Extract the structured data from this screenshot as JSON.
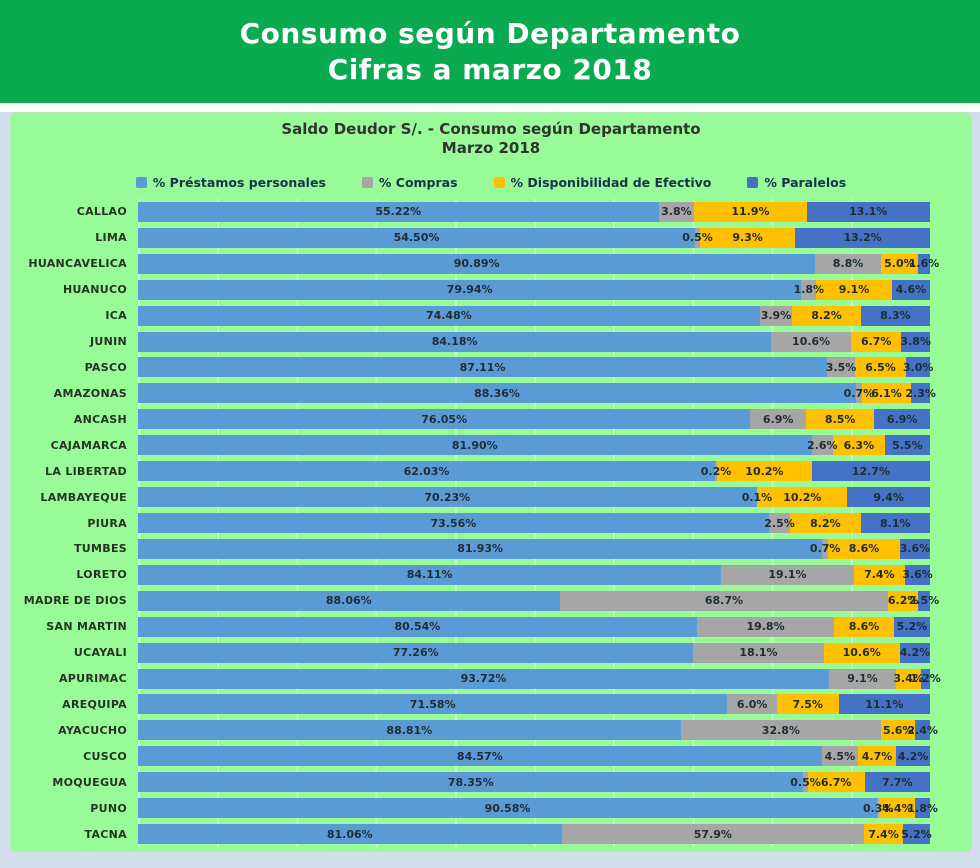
{
  "banner": {
    "title_line1": "Consumo según Departamento",
    "title_line2": "Cifras a marzo 2018",
    "background": "#0aab50",
    "text_color": "#ffffff"
  },
  "chart": {
    "title_line1": "Saldo Deudor S/. - Consumo según Departamento",
    "title_line2": "Marzo 2018",
    "panel_background": "#98fb98"
  },
  "chart_data": {
    "type": "bar",
    "orientation": "horizontal",
    "stacked": true,
    "normalized": "each row scaled to its own total",
    "legend_position": "top",
    "grid": "faint vertical gridlines",
    "title": "Saldo Deudor S/. - Consumo según Departamento Marzo 2018",
    "categories": [
      "CALLAO",
      "LIMA",
      "HUANCAVELICA",
      "HUANUCO",
      "ICA",
      "JUNIN",
      "PASCO",
      "AMAZONAS",
      "ANCASH",
      "CAJAMARCA",
      "LA LIBERTAD",
      "LAMBAYEQUE",
      "PIURA",
      "TUMBES",
      "LORETO",
      "MADRE DE DIOS",
      "SAN MARTIN",
      "UCAYALI",
      "APURIMAC",
      "AREQUIPA",
      "AYACUCHO",
      "CUSCO",
      "MOQUEGUA",
      "PUNO",
      "TACNA"
    ],
    "series": [
      {
        "name": "% Préstamos personales",
        "color": "#5B9BD5",
        "label_decimals": 2,
        "values": [
          55.22,
          54.5,
          90.89,
          79.94,
          74.48,
          84.18,
          87.11,
          88.36,
          76.05,
          81.9,
          62.03,
          70.23,
          73.56,
          81.93,
          84.11,
          88.06,
          80.54,
          77.26,
          93.72,
          71.58,
          88.81,
          84.57,
          78.35,
          90.58,
          81.06
        ]
      },
      {
        "name": "% Compras",
        "color": "#A6A6A6",
        "label_decimals": 1,
        "values": [
          3.8,
          0.5,
          8.8,
          1.8,
          3.9,
          10.6,
          3.5,
          0.7,
          6.9,
          2.6,
          0.2,
          0.1,
          2.5,
          0.7,
          19.1,
          68.7,
          19.8,
          18.1,
          9.1,
          6.0,
          32.8,
          4.5,
          0.5,
          0.3,
          57.9
        ]
      },
      {
        "name": "% Disponibilidad de Efectivo",
        "color": "#FFC000",
        "label_decimals": 1,
        "values": [
          11.9,
          9.3,
          5.0,
          9.1,
          8.2,
          6.7,
          6.5,
          6.1,
          8.5,
          6.3,
          10.2,
          10.2,
          8.2,
          8.6,
          7.4,
          6.2,
          8.6,
          10.6,
          3.4,
          7.5,
          5.6,
          4.7,
          6.7,
          4.4,
          7.4
        ]
      },
      {
        "name": "% Paralelos",
        "color": "#4472C4",
        "label_decimals": 1,
        "values": [
          13.1,
          13.2,
          1.6,
          4.6,
          8.3,
          3.8,
          3.0,
          2.3,
          6.9,
          5.5,
          12.7,
          9.4,
          8.1,
          3.6,
          3.6,
          2.5,
          5.2,
          4.2,
          1.2,
          11.1,
          2.4,
          4.2,
          7.7,
          1.8,
          5.2
        ]
      }
    ]
  }
}
